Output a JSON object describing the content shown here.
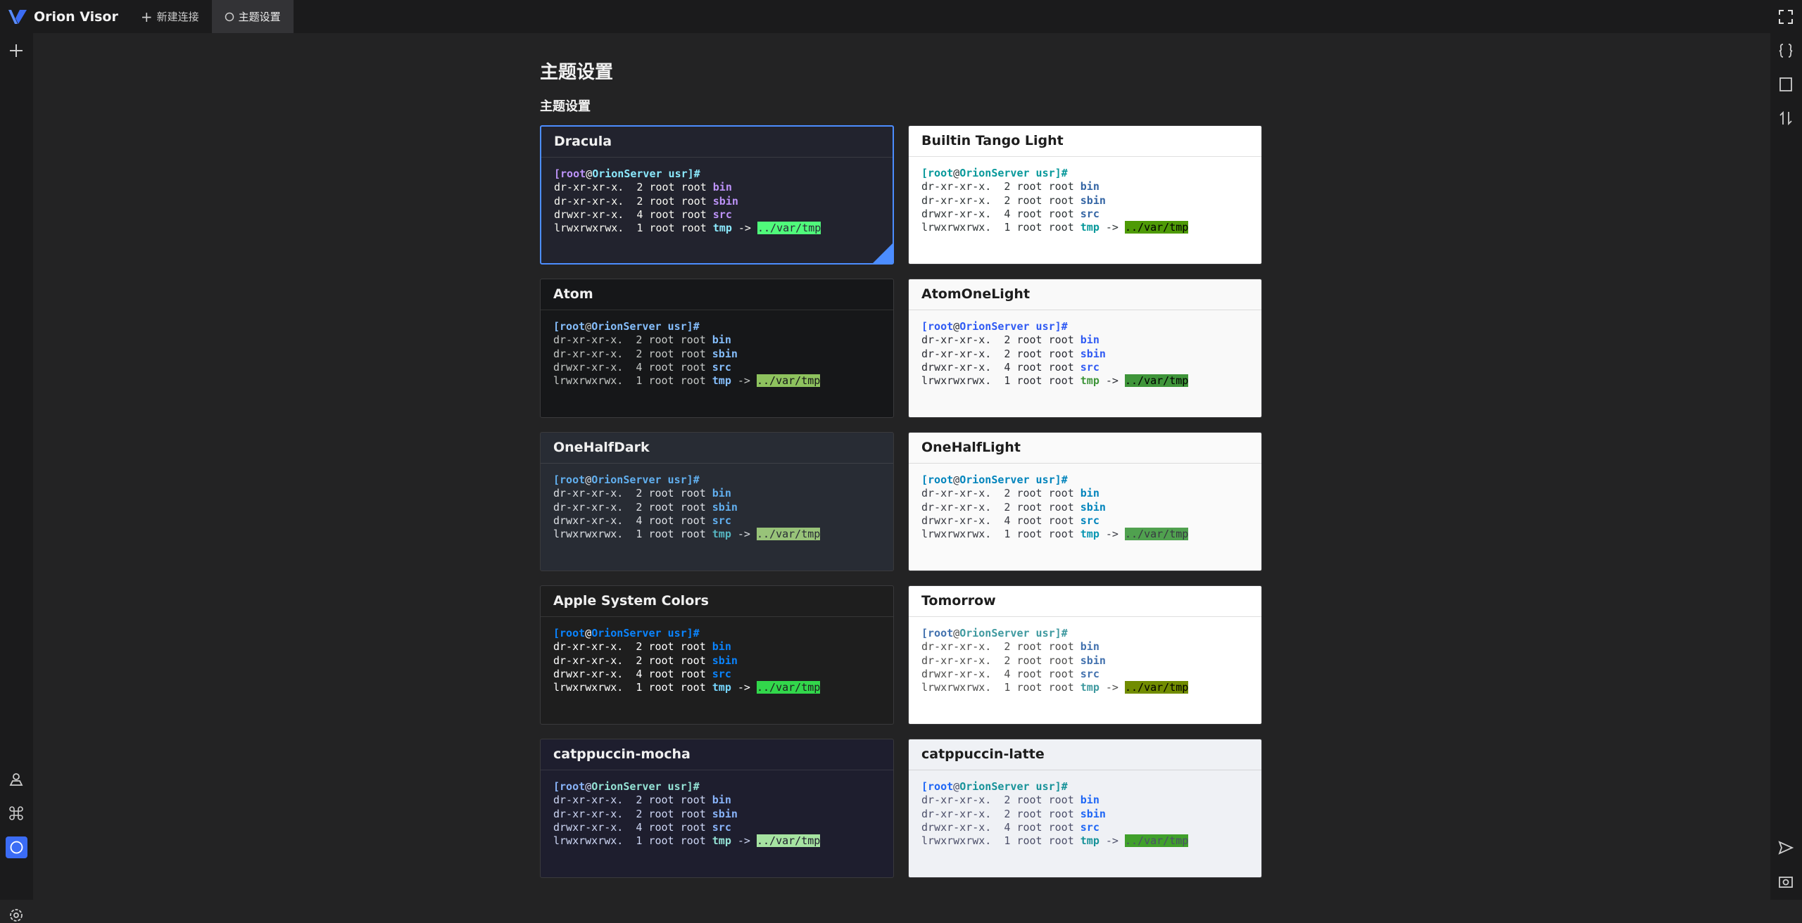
{
  "header": {
    "app_name": "Orion Visor",
    "tabs": [
      {
        "label": "新建连接"
      },
      {
        "label": "主题设置"
      }
    ]
  },
  "page": {
    "title": "主题设置",
    "section": "主题设置"
  },
  "preview": {
    "lines": [
      [
        {
          "text": "[root",
          "role": "user"
        },
        {
          "text": "@",
          "role": "fg"
        },
        {
          "text": "OrionServer usr]#",
          "role": "host"
        }
      ],
      [
        {
          "text": "dr-xr-xr-x.  2 root root ",
          "role": "fg"
        },
        {
          "text": "bin",
          "role": "dir"
        }
      ],
      [
        {
          "text": "dr-xr-xr-x.  2 root root ",
          "role": "fg"
        },
        {
          "text": "sbin",
          "role": "dir"
        }
      ],
      [
        {
          "text": "drwxr-xr-x.  4 root root ",
          "role": "fg"
        },
        {
          "text": "src",
          "role": "dir"
        }
      ],
      [
        {
          "text": "lrwxrwxrwx.  1 root root ",
          "role": "fg"
        },
        {
          "text": "tmp",
          "role": "link"
        },
        {
          "text": " -> ",
          "role": "fg"
        },
        {
          "text": "../var/tmp",
          "role": "target"
        }
      ]
    ]
  },
  "themes": [
    {
      "name": "Dracula",
      "selected": true,
      "bg": "#22232e",
      "title": "#f0f0f0",
      "fg": "#f8f8f2",
      "user": "#bd93f9",
      "host": "#8be9fd",
      "dir": "#bd93f9",
      "link": "#8be9fd",
      "target": "#50fa7b",
      "targetFg": "#282a36"
    },
    {
      "name": "Builtin Tango Light",
      "selected": false,
      "bg": "#ffffff",
      "title": "#1d1d1d",
      "fg": "#2e3436",
      "user": "#06989a",
      "host": "#06989a",
      "dir": "#3465a4",
      "link": "#06989a",
      "target": "#4e9a06",
      "targetFg": "#000000"
    },
    {
      "name": "Atom",
      "selected": false,
      "bg": "#161719",
      "title": "#f0f0f0",
      "fg": "#c5c8c6",
      "user": "#85befd",
      "host": "#85befd",
      "dir": "#85befd",
      "link": "#85befd",
      "target": "#8ec25e",
      "targetFg": "#161719"
    },
    {
      "name": "AtomOneLight",
      "selected": false,
      "bg": "#f9f9f9",
      "title": "#1d1d1d",
      "fg": "#2a2c33",
      "user": "#2f5af3",
      "host": "#2f5af3",
      "dir": "#2f5af3",
      "link": "#3f953a",
      "target": "#3f953a",
      "targetFg": "#000000"
    },
    {
      "name": "OneHalfDark",
      "selected": false,
      "bg": "#282c34",
      "title": "#f0f0f0",
      "fg": "#dcdfe4",
      "user": "#61afef",
      "host": "#61afef",
      "dir": "#61afef",
      "link": "#56b6c2",
      "target": "#98c379",
      "targetFg": "#282c34"
    },
    {
      "name": "OneHalfLight",
      "selected": false,
      "bg": "#fafafa",
      "title": "#1d1d1d",
      "fg": "#383a42",
      "user": "#0184bc",
      "host": "#0184bc",
      "dir": "#0184bc",
      "link": "#0997b3",
      "target": "#50a14f",
      "targetFg": "#383a42"
    },
    {
      "name": "Apple System Colors",
      "selected": false,
      "bg": "#1e1e1e",
      "title": "#f0f0f0",
      "fg": "#ffffff",
      "user": "#0a84ff",
      "host": "#0a84ff",
      "dir": "#0a84ff",
      "link": "#76d6ff",
      "target": "#32d74b",
      "targetFg": "#1e1e1e"
    },
    {
      "name": "Tomorrow",
      "selected": false,
      "bg": "#ffffff",
      "title": "#1d1d1d",
      "fg": "#4d4d4c",
      "user": "#4271ae",
      "host": "#3e999f",
      "dir": "#4271ae",
      "link": "#3e999f",
      "target": "#718c00",
      "targetFg": "#000000"
    },
    {
      "name": "catppuccin-mocha",
      "selected": false,
      "bg": "#1e1e2e",
      "title": "#f0f0f0",
      "fg": "#cdd6f4",
      "user": "#89b4fa",
      "host": "#94e2d5",
      "dir": "#89b4fa",
      "link": "#94e2d5",
      "target": "#a6e3a1",
      "targetFg": "#1e1e2e"
    },
    {
      "name": "catppuccin-latte",
      "selected": false,
      "bg": "#eff1f5",
      "title": "#1d1d1d",
      "fg": "#4c4f69",
      "user": "#1e66f5",
      "host": "#179299",
      "dir": "#1e66f5",
      "link": "#179299",
      "target": "#40a02b",
      "targetFg": "#4c4f69"
    }
  ]
}
